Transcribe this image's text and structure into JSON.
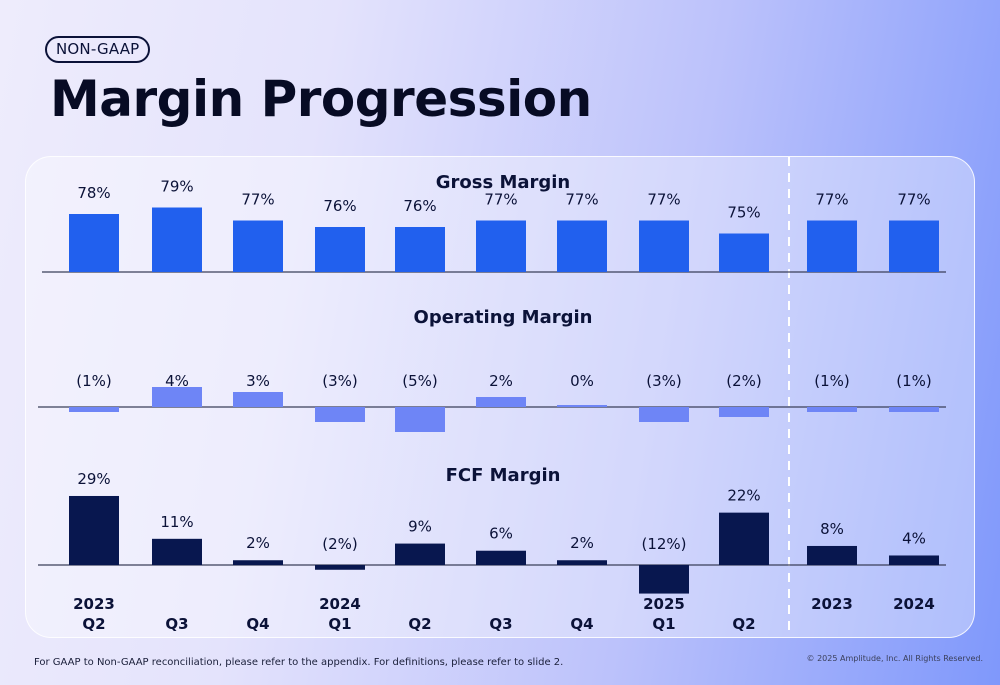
{
  "header": {
    "badge": "NON-GAAP",
    "title": "Margin Progression"
  },
  "footer": {
    "note": "For GAAP to Non-GAAP reconciliation, please refer to the appendix. For definitions, please refer to slide 2.",
    "copyright": "© 2025 Amplitude, Inc.  All Rights Reserved."
  },
  "colors": {
    "gross": "#2160ee",
    "operating": "#6e85f6",
    "fcf": "#08174f"
  },
  "chart_data": [
    {
      "type": "bar",
      "title": "Gross Margin",
      "categories": [
        "2023 Q2",
        "Q3",
        "Q4",
        "2024 Q1",
        "Q2",
        "Q3",
        "Q4",
        "2025 Q1",
        "Q2",
        "2023",
        "2024"
      ],
      "values": [
        78,
        79,
        77,
        76,
        76,
        77,
        77,
        77,
        75,
        77,
        77
      ],
      "labels": [
        "78%",
        "79%",
        "77%",
        "76%",
        "76%",
        "77%",
        "77%",
        "77%",
        "75%",
        "77%",
        "77%"
      ]
    },
    {
      "type": "bar",
      "title": "Operating Margin",
      "categories": [
        "2023 Q2",
        "Q3",
        "Q4",
        "2024 Q1",
        "Q2",
        "Q3",
        "Q4",
        "2025 Q1",
        "Q2",
        "2023",
        "2024"
      ],
      "values": [
        -1,
        4,
        3,
        -3,
        -5,
        2,
        0,
        -3,
        -2,
        -1,
        -1
      ],
      "labels": [
        "(1%)",
        "4%",
        "3%",
        "(3%)",
        "(5%)",
        "2%",
        "0%",
        "(3%)",
        "(2%)",
        "(1%)",
        "(1%)"
      ]
    },
    {
      "type": "bar",
      "title": "FCF Margin",
      "categories": [
        "2023 Q2",
        "Q3",
        "Q4",
        "2024 Q1",
        "Q2",
        "Q3",
        "Q4",
        "2025 Q1",
        "Q2",
        "2023",
        "2024"
      ],
      "values": [
        29,
        11,
        2,
        -2,
        9,
        6,
        2,
        -12,
        22,
        8,
        4
      ],
      "labels": [
        "29%",
        "11%",
        "2%",
        "(2%)",
        "9%",
        "6%",
        "2%",
        "(12%)",
        "22%",
        "8%",
        "4%"
      ]
    }
  ],
  "x_axis": {
    "years": [
      "2023",
      "",
      "",
      "2024",
      "",
      "",
      "",
      "2025",
      "",
      "2023",
      "2024"
    ],
    "quarters": [
      "Q2",
      "Q3",
      "Q4",
      "Q1",
      "Q2",
      "Q3",
      "Q4",
      "Q1",
      "Q2",
      "",
      ""
    ]
  }
}
